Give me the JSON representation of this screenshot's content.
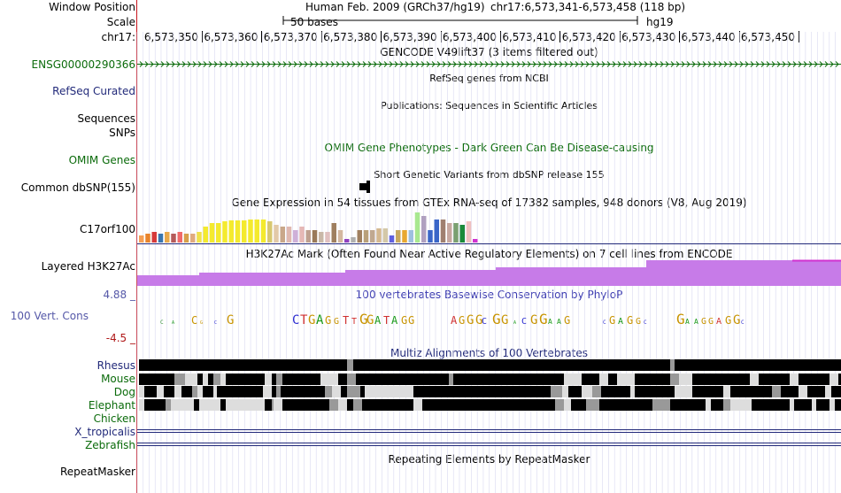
{
  "header": {
    "window_position_label": "Window Position",
    "scale_label": "Scale",
    "chrom_label": "chr17:",
    "assembly_title": "Human Feb. 2009 (GRCh37/hg19)",
    "position": "chr17:6,573,341-6,573,458 (118 bp)",
    "scale_text": "50 bases",
    "scale_db": "hg19",
    "ruler_ticks": [
      "6,573,350",
      "6,573,360",
      "6,573,370",
      "6,573,380",
      "6,573,390",
      "6,573,400",
      "6,573,410",
      "6,573,420",
      "6,573,430",
      "6,573,440",
      "6,573,450"
    ]
  },
  "tracks": {
    "gencode_title": "GENCODE V49lift37 (3 items filtered out)",
    "gencode_gene": "ENSG00000290366",
    "refseq_label": "RefSeq Curated",
    "refseq_title": "RefSeq genes from NCBI",
    "pubs_title": "Publications: Sequences in Scientific Articles",
    "sequences_label": "Sequences",
    "snps_label": "SNPs",
    "omim_title": "OMIM Gene Phenotypes - Dark Green Can Be Disease-causing",
    "omim_label": "OMIM Genes",
    "dbsnp_title": "Short Genetic Variants from dbSNP release 155",
    "dbsnp_label": "Common dbSNP(155)",
    "gtex_title": "Gene Expression in 54 tissues from GTEx RNA-seq of 17382 samples, 948 donors (V8, Aug 2019)",
    "gtex_label": "C17orf100",
    "h3k27_title": "H3K27Ac Mark (Often Found Near Active Regulatory Elements) on 7 cell lines from ENCODE",
    "h3k27_label": "Layered H3K27Ac",
    "cons_title": "100 vertebrates Basewise Conservation by PhyloP",
    "cons_label": "100 Vert. Cons",
    "cons_max": "4.88 _",
    "cons_min": "-4.5 _",
    "multiz_title": "Multiz Alignments of 100 Vertebrates",
    "species": [
      "Rhesus",
      "Mouse",
      "Dog",
      "Elephant",
      "Chicken",
      "X_tropicalis",
      "Zebrafish"
    ],
    "rmsk_title": "Repeating Elements by RepeatMasker",
    "rmsk_label": "RepeatMasker"
  },
  "colors": {
    "green_label": "#0b6b0b",
    "navy_label": "#222a7a",
    "purple_label": "#5558a8",
    "h3k27_fill": "#c77be8",
    "divider": "#222a7a"
  },
  "gtex_values": [
    8,
    10,
    12,
    10,
    12,
    10,
    12,
    10,
    10,
    12,
    18,
    22,
    22,
    24,
    25,
    25,
    25,
    26,
    26,
    26,
    24,
    20,
    18,
    18,
    14,
    18,
    14,
    14,
    12,
    12,
    22,
    14,
    4,
    6,
    14,
    14,
    14,
    16,
    16,
    8,
    14,
    14,
    14,
    34,
    30,
    14,
    26,
    26,
    22,
    22,
    20,
    24,
    4
  ],
  "gtex_colors": [
    "#f59f55",
    "#e8832b",
    "#d63a3a",
    "#3a76b0",
    "#e8a84a",
    "#b55a5a",
    "#f06a6a",
    "#d7a04a",
    "#e0aa80",
    "#f1e24a",
    "#f4ea2e",
    "#f4ea2e",
    "#f4ea2e",
    "#f4ea2e",
    "#f4ea2e",
    "#f4ea2e",
    "#f4ea2e",
    "#f4ea2e",
    "#f4ea2e",
    "#f4ea2e",
    "#d8c870",
    "#e2c9a8",
    "#c9a78a",
    "#e0b8b0",
    "#cfb0d8",
    "#e6b8b6",
    "#bfa090",
    "#9a7a5a",
    "#c9b8a8",
    "#e0c0c0",
    "#9f7f5f",
    "#d4b8a0",
    "#9040c0",
    "#b0b0b0",
    "#a08060",
    "#b9a07a",
    "#c0a890",
    "#d4b890",
    "#d4c8a8",
    "#6060e0",
    "#c7a860",
    "#e8a830",
    "#9ec0e0",
    "#a8e890",
    "#b0a0c0",
    "#3a66c8",
    "#3a66c8",
    "#a08070",
    "#c8a8a0",
    "#7aa070",
    "#1b8a3a",
    "#f0c0c0",
    "#d032d0"
  ],
  "conservation": [
    {
      "b": "C",
      "h": 6,
      "c": "#2f8f2f"
    },
    {
      "b": "A",
      "h": 4,
      "c": "#1a9a1a"
    },
    {
      "b": "C",
      "h": 12,
      "c": "#c89400"
    },
    {
      "b": "G",
      "h": 3,
      "c": "#c89400"
    },
    {
      "b": "C",
      "h": 3,
      "c": "#2a2ad0"
    },
    {
      "b": "G",
      "h": 14,
      "c": "#c89400"
    },
    {
      "b": "C",
      "h": 14,
      "c": "#2a2ad0"
    },
    {
      "b": "T",
      "h": 14,
      "c": "#d03030"
    },
    {
      "b": "G",
      "h": 14,
      "c": "#c89400"
    },
    {
      "b": "A",
      "h": 14,
      "c": "#1a9a1a"
    },
    {
      "b": "G",
      "h": 12,
      "c": "#c89400"
    },
    {
      "b": "G",
      "h": 10,
      "c": "#c89400"
    },
    {
      "b": "T",
      "h": 12,
      "c": "#d03030"
    },
    {
      "b": "T",
      "h": 10,
      "c": "#d03030"
    },
    {
      "b": "G",
      "h": 16,
      "c": "#c89400"
    },
    {
      "b": "G",
      "h": 14,
      "c": "#c89400"
    },
    {
      "b": "A",
      "h": 12,
      "c": "#1a9a1a"
    },
    {
      "b": "T",
      "h": 12,
      "c": "#d03030"
    },
    {
      "b": "A",
      "h": 12,
      "c": "#1a9a1a"
    },
    {
      "b": "G",
      "h": 12,
      "c": "#c89400"
    },
    {
      "b": "G",
      "h": 12,
      "c": "#c89400"
    },
    {
      "b": "A",
      "h": 12,
      "c": "#d03030"
    },
    {
      "b": "G",
      "h": 12,
      "c": "#c89400"
    },
    {
      "b": "G",
      "h": 14,
      "c": "#c89400"
    },
    {
      "b": "G",
      "h": 14,
      "c": "#c89400"
    },
    {
      "b": "C",
      "h": 10,
      "c": "#2a2ad0"
    },
    {
      "b": "G",
      "h": 16,
      "c": "#c89400"
    },
    {
      "b": "G",
      "h": 14,
      "c": "#c89400"
    },
    {
      "b": "A",
      "h": 5,
      "c": "#1a9a1a"
    },
    {
      "b": "C",
      "h": 10,
      "c": "#2a2ad0"
    },
    {
      "b": "G",
      "h": 14,
      "c": "#c89400"
    },
    {
      "b": "G",
      "h": 16,
      "c": "#c89400"
    },
    {
      "b": "A",
      "h": 8,
      "c": "#1a9a1a"
    },
    {
      "b": "A",
      "h": 8,
      "c": "#1a9a1a"
    },
    {
      "b": "G",
      "h": 12,
      "c": "#c89400"
    },
    {
      "b": "C",
      "h": 6,
      "c": "#2a2ad0"
    },
    {
      "b": "G",
      "h": 12,
      "c": "#c89400"
    },
    {
      "b": "A",
      "h": 10,
      "c": "#1a9a1a"
    },
    {
      "b": "G",
      "h": 12,
      "c": "#c89400"
    },
    {
      "b": "G",
      "h": 10,
      "c": "#c89400"
    },
    {
      "b": "C",
      "h": 6,
      "c": "#2a2ad0"
    },
    {
      "b": "G",
      "h": 16,
      "c": "#c89400"
    },
    {
      "b": "A",
      "h": 8,
      "c": "#1a9a1a"
    },
    {
      "b": "A",
      "h": 8,
      "c": "#1a9a1a"
    },
    {
      "b": "G",
      "h": 10,
      "c": "#c89400"
    },
    {
      "b": "G",
      "h": 10,
      "c": "#c89400"
    },
    {
      "b": "A",
      "h": 10,
      "c": "#d03030"
    },
    {
      "b": "G",
      "h": 12,
      "c": "#c89400"
    },
    {
      "b": "G",
      "h": 14,
      "c": "#c89400"
    },
    {
      "b": "C",
      "h": 6,
      "c": "#2a2ad0"
    }
  ],
  "multiz_blocks": [
    [
      [
        0,
        235,
        "k"
      ],
      [
        235,
        242,
        "g"
      ],
      [
        242,
        600,
        "k"
      ],
      [
        600,
        605,
        "g"
      ],
      [
        605,
        795,
        "k"
      ]
    ],
    [
      [
        0,
        40,
        "k"
      ],
      [
        40,
        52,
        "g"
      ],
      [
        52,
        66,
        "w"
      ],
      [
        66,
        72,
        "k"
      ],
      [
        72,
        78,
        "w"
      ],
      [
        78,
        84,
        "k"
      ],
      [
        84,
        92,
        "g"
      ],
      [
        92,
        98,
        "w"
      ],
      [
        98,
        142,
        "k"
      ],
      [
        142,
        150,
        "w"
      ],
      [
        150,
        155,
        "k"
      ],
      [
        155,
        162,
        "g"
      ],
      [
        162,
        205,
        "k"
      ],
      [
        205,
        225,
        "w"
      ],
      [
        225,
        235,
        "k"
      ],
      [
        235,
        245,
        "g"
      ],
      [
        245,
        252,
        "k"
      ],
      [
        252,
        350,
        "k"
      ],
      [
        350,
        355,
        "g"
      ],
      [
        355,
        480,
        "k"
      ],
      [
        480,
        500,
        "w"
      ],
      [
        500,
        520,
        "k"
      ],
      [
        520,
        530,
        "w"
      ],
      [
        530,
        540,
        "k"
      ],
      [
        540,
        560,
        "w"
      ],
      [
        560,
        600,
        "k"
      ],
      [
        600,
        610,
        "g"
      ],
      [
        610,
        625,
        "w"
      ],
      [
        625,
        690,
        "k"
      ],
      [
        690,
        700,
        "w"
      ],
      [
        700,
        735,
        "k"
      ],
      [
        735,
        745,
        "w"
      ],
      [
        745,
        780,
        "k"
      ],
      [
        780,
        790,
        "w"
      ],
      [
        790,
        795,
        "k"
      ]
    ],
    [
      [
        0,
        6,
        "w"
      ],
      [
        6,
        20,
        "k"
      ],
      [
        20,
        28,
        "w"
      ],
      [
        28,
        40,
        "k"
      ],
      [
        40,
        48,
        "w"
      ],
      [
        48,
        60,
        "k"
      ],
      [
        60,
        66,
        "g"
      ],
      [
        66,
        72,
        "w"
      ],
      [
        72,
        84,
        "k"
      ],
      [
        84,
        88,
        "w"
      ],
      [
        88,
        140,
        "k"
      ],
      [
        140,
        150,
        "w"
      ],
      [
        150,
        155,
        "k"
      ],
      [
        155,
        160,
        "g"
      ],
      [
        160,
        210,
        "k"
      ],
      [
        210,
        218,
        "g"
      ],
      [
        218,
        228,
        "w"
      ],
      [
        228,
        235,
        "k"
      ],
      [
        235,
        250,
        "g"
      ],
      [
        250,
        255,
        "k"
      ],
      [
        255,
        310,
        "w"
      ],
      [
        310,
        315,
        "k"
      ],
      [
        315,
        465,
        "k"
      ],
      [
        465,
        478,
        "g"
      ],
      [
        478,
        485,
        "w"
      ],
      [
        485,
        500,
        "k"
      ],
      [
        500,
        512,
        "w"
      ],
      [
        512,
        522,
        "g"
      ],
      [
        522,
        525,
        "k"
      ],
      [
        525,
        555,
        "k"
      ],
      [
        555,
        560,
        "w"
      ],
      [
        560,
        605,
        "k"
      ],
      [
        605,
        625,
        "w"
      ],
      [
        625,
        660,
        "k"
      ],
      [
        660,
        668,
        "w"
      ],
      [
        668,
        715,
        "k"
      ],
      [
        715,
        725,
        "g"
      ],
      [
        725,
        745,
        "k"
      ],
      [
        745,
        755,
        "w"
      ],
      [
        755,
        775,
        "k"
      ],
      [
        775,
        782,
        "w"
      ],
      [
        782,
        795,
        "k"
      ]
    ],
    [
      [
        0,
        6,
        "w"
      ],
      [
        6,
        30,
        "k"
      ],
      [
        30,
        36,
        "g"
      ],
      [
        36,
        62,
        "w"
      ],
      [
        62,
        68,
        "k"
      ],
      [
        68,
        92,
        "w"
      ],
      [
        92,
        98,
        "k"
      ],
      [
        98,
        142,
        "w"
      ],
      [
        142,
        150,
        "k"
      ],
      [
        150,
        152,
        "g"
      ],
      [
        152,
        162,
        "w"
      ],
      [
        162,
        215,
        "k"
      ],
      [
        215,
        225,
        "g"
      ],
      [
        225,
        235,
        "w"
      ],
      [
        235,
        242,
        "k"
      ],
      [
        242,
        252,
        "g"
      ],
      [
        252,
        310,
        "k"
      ],
      [
        310,
        320,
        "w"
      ],
      [
        320,
        470,
        "k"
      ],
      [
        470,
        480,
        "g"
      ],
      [
        480,
        488,
        "w"
      ],
      [
        488,
        505,
        "k"
      ],
      [
        505,
        520,
        "g"
      ],
      [
        520,
        580,
        "k"
      ],
      [
        580,
        600,
        "g"
      ],
      [
        600,
        640,
        "k"
      ],
      [
        640,
        646,
        "w"
      ],
      [
        646,
        660,
        "k"
      ],
      [
        660,
        668,
        "g"
      ],
      [
        668,
        692,
        "w"
      ],
      [
        692,
        735,
        "k"
      ],
      [
        735,
        740,
        "w"
      ],
      [
        740,
        760,
        "k"
      ],
      [
        760,
        765,
        "w"
      ],
      [
        765,
        780,
        "k"
      ],
      [
        780,
        786,
        "w"
      ],
      [
        786,
        795,
        "k"
      ]
    ]
  ],
  "h3k27_levels": [
    [
      0,
      70,
      12
    ],
    [
      70,
      235,
      15
    ],
    [
      235,
      405,
      18
    ],
    [
      405,
      575,
      21
    ],
    [
      575,
      795,
      29
    ]
  ]
}
